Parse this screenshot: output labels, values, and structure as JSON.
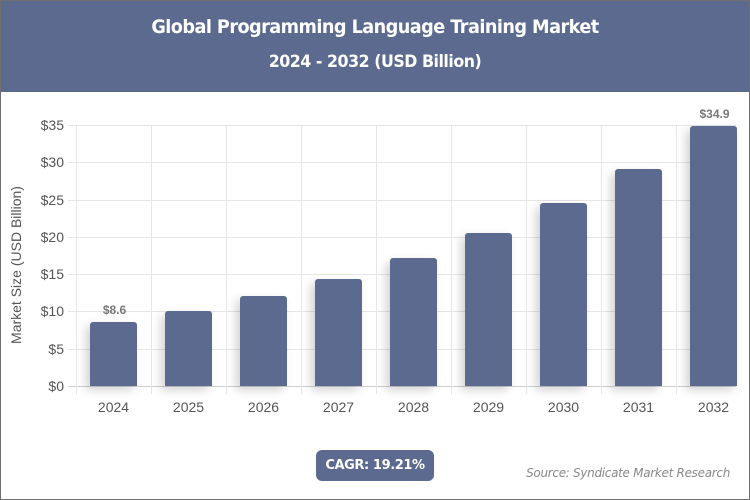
{
  "header": {
    "title": "Global Programming Language Training Market",
    "subtitle": "2024 - 2032 (USD Billion)",
    "background_color": "#5b6a8e"
  },
  "axes": {
    "ylabel": "Market Size (USD Billion)",
    "yticks": [
      "$0",
      "$5",
      "$10",
      "$15",
      "$20",
      "$25",
      "$30",
      "$35"
    ],
    "xticks": [
      "2024",
      "2025",
      "2026",
      "2027",
      "2028",
      "2029",
      "2030",
      "2031",
      "2032"
    ]
  },
  "data_labels": {
    "first": "$8.6",
    "last": "$34.9"
  },
  "footer": {
    "cagr": "CAGR: 19.21%",
    "source": "Source: Syndicate Market Research"
  },
  "chart_data": {
    "type": "bar",
    "title": "Global Programming Language Training Market",
    "subtitle": "2024 - 2032 (USD Billion)",
    "categories": [
      "2024",
      "2025",
      "2026",
      "2027",
      "2028",
      "2029",
      "2030",
      "2031",
      "2032"
    ],
    "values": [
      8.6,
      10.1,
      12.1,
      14.4,
      17.2,
      20.5,
      24.5,
      29.1,
      34.9
    ],
    "xlabel": "",
    "ylabel": "Market Size (USD Billion)",
    "ylim": [
      0,
      35
    ],
    "ytick_step": 5,
    "grid": true,
    "legend": null,
    "bar_color": "#5b6a8e",
    "annotations": [
      "$8.6 (2024)",
      "$34.9 (2032)",
      "CAGR: 19.21%",
      "Source: Syndicate Market Research"
    ]
  }
}
